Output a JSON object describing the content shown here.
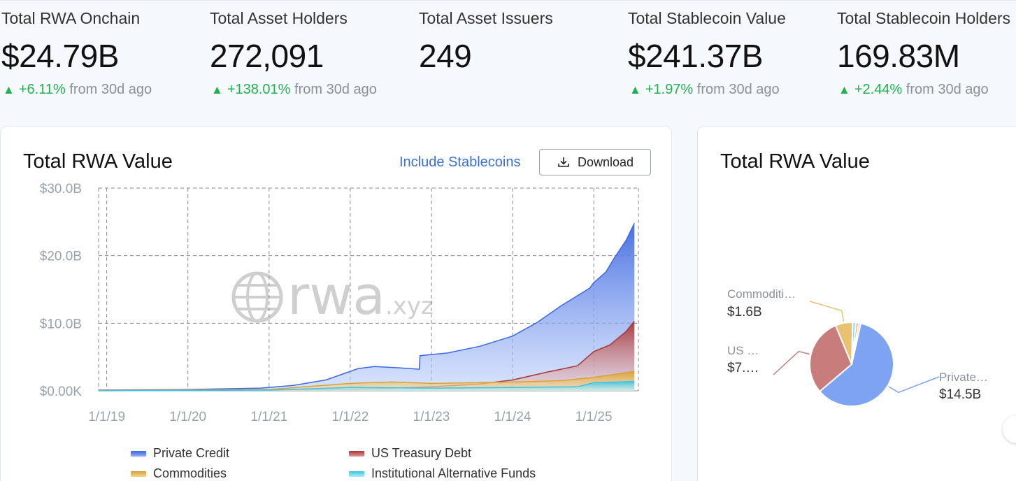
{
  "stats": [
    {
      "label": "Total RWA Onchain",
      "value": "$24.79B",
      "change": "+6.11%",
      "suffix": "from 30d ago"
    },
    {
      "label": "Total Asset Holders",
      "value": "272,091",
      "change": "+138.01%",
      "suffix": "from 30d ago"
    },
    {
      "label": "Total Asset Issuers",
      "value": "249",
      "change": "",
      "suffix": ""
    },
    {
      "label": "Total Stablecoin Value",
      "value": "$241.37B",
      "change": "+1.97%",
      "suffix": "from 30d ago"
    },
    {
      "label": "Total Stablecoin Holders",
      "value": "169.83M",
      "change": "+2.44%",
      "suffix": "from 30d ago"
    }
  ],
  "main_card": {
    "title": "Total RWA Value",
    "toggle_label": "Include Stablecoins",
    "download_label": "Download",
    "watermark": "rwa.xyz"
  },
  "side_card": {
    "title": "Total RWA Value"
  },
  "colors": {
    "private_credit": "#5b86f0",
    "us_treasury": "#b94a4a",
    "commodities": "#e6b64a",
    "alt_funds": "#5fd0e8",
    "up": "#22b14c"
  },
  "chart_data": [
    {
      "type": "area",
      "title": "Total RWA Value",
      "ylabel": "",
      "ylim": [
        0,
        30
      ],
      "y_unit": "B",
      "y_ticks": [
        "$0.00K",
        "$10.0B",
        "$20.0B",
        "$30.0B"
      ],
      "x_ticks": [
        "1/1/19",
        "1/1/20",
        "1/1/21",
        "1/1/22",
        "1/1/23",
        "1/1/24",
        "1/1/25"
      ],
      "x_range": [
        2018.9,
        2025.55
      ],
      "grid": true,
      "legend_position": "bottom",
      "series": [
        {
          "name": "Private Credit",
          "color": "#5b86f0",
          "x": [
            2018.9,
            2020.0,
            2020.9,
            2021.3,
            2021.7,
            2022.1,
            2022.3,
            2022.6,
            2022.85,
            2022.86,
            2023.2,
            2023.6,
            2024.0,
            2024.3,
            2024.6,
            2024.95,
            2025.0,
            2025.15,
            2025.25,
            2025.4,
            2025.5
          ],
          "values": [
            0.1,
            0.2,
            0.4,
            0.8,
            1.6,
            3.3,
            3.6,
            3.4,
            3.2,
            5.2,
            5.6,
            6.6,
            8.1,
            10.1,
            12.6,
            15.2,
            16.0,
            17.6,
            19.6,
            22.3,
            24.8
          ]
        },
        {
          "name": "US Treasury Debt",
          "color": "#b94a4a",
          "x": [
            2018.9,
            2021.0,
            2022.0,
            2023.0,
            2023.6,
            2024.0,
            2024.4,
            2024.8,
            2025.0,
            2025.2,
            2025.4,
            2025.5
          ],
          "values": [
            0.05,
            0.1,
            0.2,
            0.6,
            1.0,
            1.6,
            2.7,
            3.7,
            5.8,
            6.8,
            8.8,
            10.3
          ]
        },
        {
          "name": "Commodities",
          "color": "#e6b64a",
          "x": [
            2018.9,
            2021.0,
            2022.0,
            2022.5,
            2023.0,
            2024.0,
            2024.6,
            2025.0,
            2025.3,
            2025.5
          ],
          "values": [
            0.05,
            0.2,
            1.1,
            1.3,
            1.1,
            1.3,
            1.5,
            2.0,
            2.5,
            2.9
          ]
        },
        {
          "name": "Institutional Alternative Funds",
          "color": "#5fd0e8",
          "x": [
            2018.9,
            2021.0,
            2022.0,
            2023.0,
            2024.0,
            2024.8,
            2025.0,
            2025.5
          ],
          "values": [
            0.0,
            0.1,
            0.5,
            0.4,
            0.5,
            0.6,
            1.2,
            1.4
          ]
        }
      ]
    },
    {
      "type": "pie",
      "title": "Total RWA Value",
      "slices": [
        {
          "label": "Private…",
          "value_label": "$14.5B",
          "value": 14.5,
          "color": "#7ea3f3"
        },
        {
          "label": "US …",
          "value_label": "$7.…",
          "value": 7.2,
          "color": "#c97c7c"
        },
        {
          "label": "Commoditi…",
          "value_label": "$1.6B",
          "value": 1.6,
          "color": "#e8c271"
        },
        {
          "label": "",
          "value_label": "",
          "value": 0.3,
          "color": "#8fdff0"
        },
        {
          "label": "",
          "value_label": "",
          "value": 0.25,
          "color": "#f0a982"
        },
        {
          "label": "",
          "value_label": "",
          "value": 0.2,
          "color": "#f5b6c6"
        }
      ]
    }
  ]
}
